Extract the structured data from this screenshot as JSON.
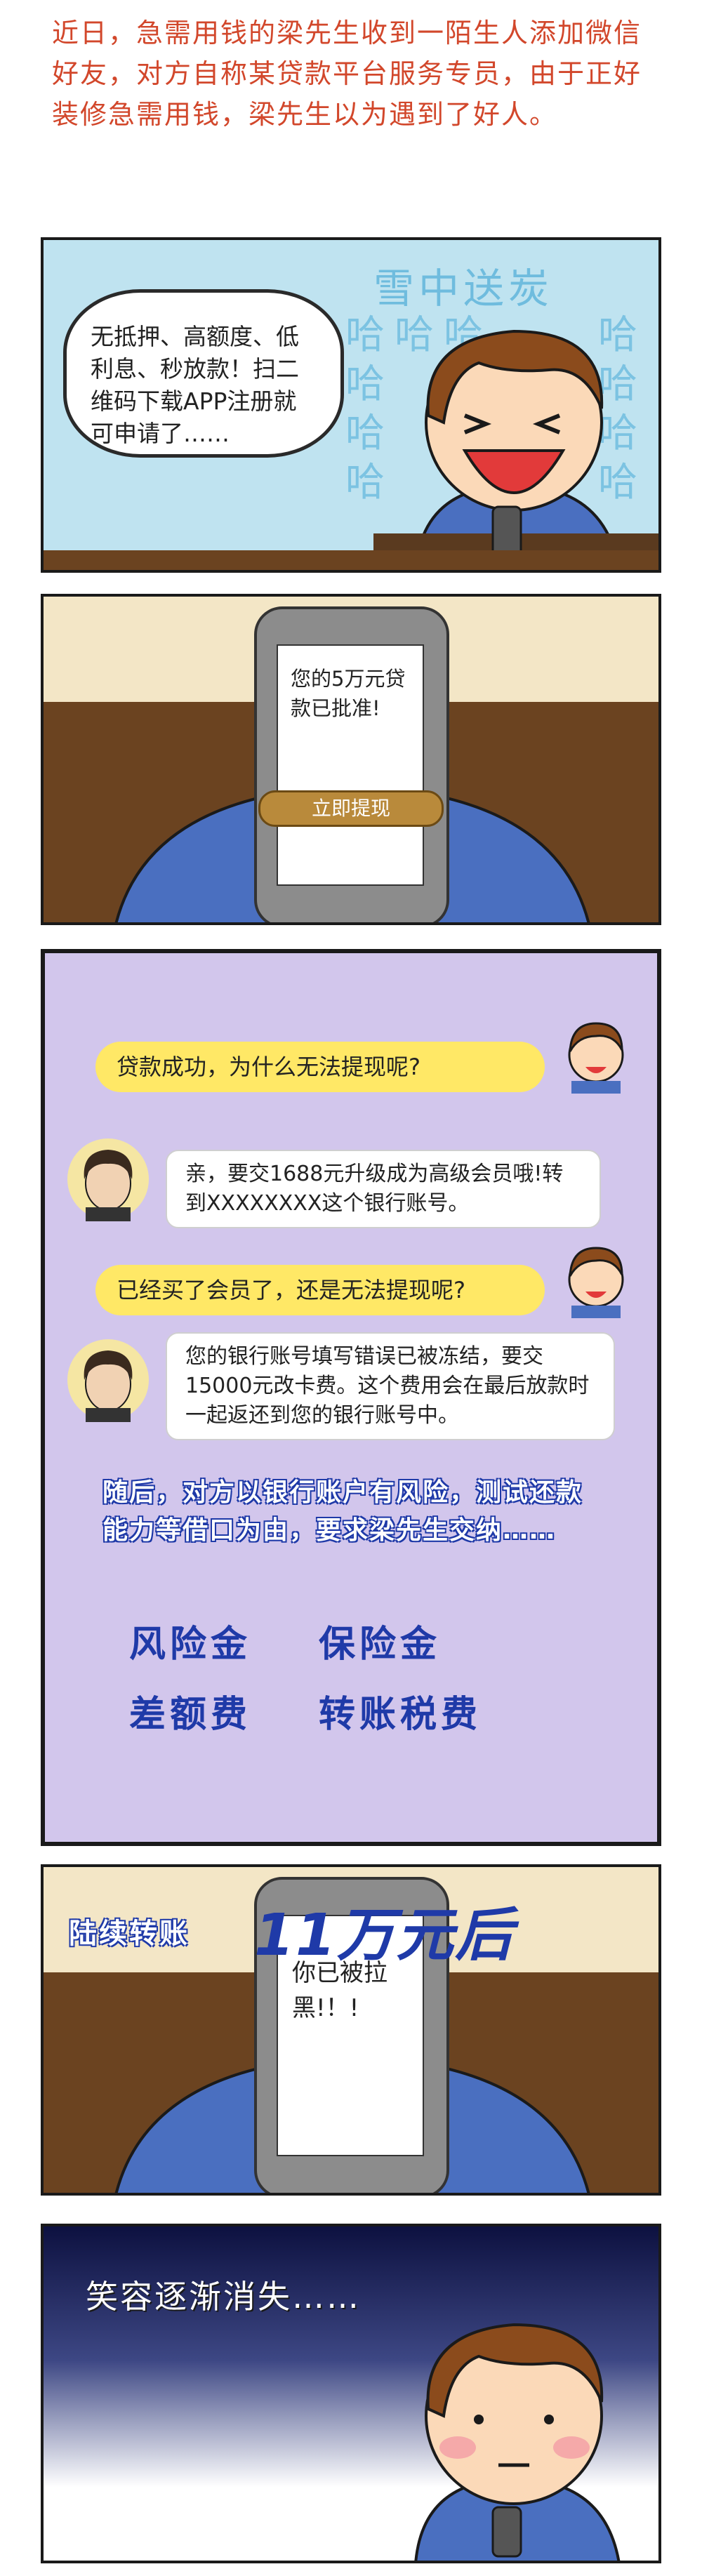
{
  "intro": {
    "text": "近日，急需用钱的梁先生收到一陌生人添加微信好友，对方自称某贷款平台服务专员，由于正好装修急需用钱，梁先生以为遇到了好人。"
  },
  "panel1": {
    "bg_title": "雪中送炭",
    "bg_laugh": "哈",
    "speech": "无抵押、高额度、低利息、秒放款！扫二维码下载APP注册就可申请了……"
  },
  "panel2": {
    "screen_text": "您的5万元贷款已批准!",
    "button": "立即提现"
  },
  "panel3": {
    "messages": [
      {
        "from": "victim",
        "text": "贷款成功，为什么无法提现呢?"
      },
      {
        "from": "scammer",
        "text": "亲，要交1688元升级成为高级会员哦!转到XXXXXXXX这个银行账号。"
      },
      {
        "from": "victim",
        "text": "已经买了会员了，还是无法提现呢?"
      },
      {
        "from": "scammer",
        "text": "您的银行账号填写错误已被冻结，要交15000元改卡费。这个费用会在最后放款时一起返还到您的银行账号中。"
      }
    ],
    "narration": "随后，对方以银行账户有风险，测试还款能力等借口为由，要求梁先生交纳……",
    "fees": [
      "风险金",
      "保险金",
      "差额费",
      "转账税费"
    ]
  },
  "panel4": {
    "caption_small": "陆续转账",
    "caption_big": "11万元后",
    "screen_text": "你已被拉黑!！!"
  },
  "panel5": {
    "caption": "笑容逐渐消失……"
  },
  "colors": {
    "intro": "#d2472b",
    "blue_text": "#1f3aa8",
    "pill": "#ffe866",
    "p3_bg": "#d2c6ec"
  }
}
